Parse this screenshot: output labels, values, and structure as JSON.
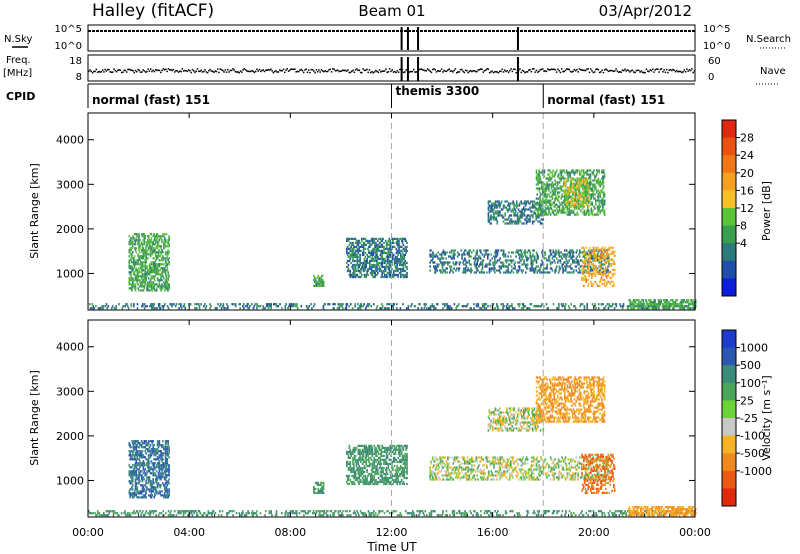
{
  "header": {
    "station": "Halley (fitACF)",
    "beam": "Beam 01",
    "date": "03/Apr/2012"
  },
  "strip_labels": {
    "nsky": "N.Sky",
    "nsky_top": "10^5",
    "nsky_bottom": "10^0",
    "nsearch": "N.Search",
    "nsearch_top": "10^5",
    "nsearch_bottom": "10^0",
    "freq": "Freq.",
    "freq_unit": "[MHz]",
    "freq_top": "18",
    "freq_bottom": "8",
    "nave": "Nave",
    "nave_top": "60",
    "nave_bottom": "0",
    "cpid": "CPID"
  },
  "cpid_segments": [
    {
      "label": "normal (fast) 151",
      "start_hour": 0
    },
    {
      "label": "themis 3300",
      "start_hour": 12
    },
    {
      "label": "normal (fast) 151",
      "start_hour": 18
    }
  ],
  "axes": {
    "xlabel": "Time UT",
    "ylabel": "Slant Range [km]",
    "xticks": [
      "00:00",
      "04:00",
      "08:00",
      "12:00",
      "16:00",
      "20:00",
      "00:00"
    ],
    "yticks": [
      "1000",
      "2000",
      "3000",
      "4000"
    ],
    "ylim_km": [
      180,
      4600
    ]
  },
  "power_scale": {
    "label": "Power [dB]",
    "ticks": [
      "4",
      "8",
      "12",
      "16",
      "20",
      "24",
      "28"
    ],
    "colors": [
      "#0a1edc",
      "#1f4fa8",
      "#2d7a7a",
      "#3a9d4f",
      "#5cc23a",
      "#f5c028",
      "#f5a020",
      "#f07818",
      "#e85212",
      "#e02810"
    ]
  },
  "velocity_scale": {
    "label": "Velocity [m s⁻¹]",
    "ticks": [
      "1000",
      "500",
      "100",
      "25",
      "-25",
      "-100",
      "-500",
      "-1000"
    ],
    "colors": [
      "#1e3ccc",
      "#2a58b0",
      "#3b8a7a",
      "#4aa55a",
      "#6ed23a",
      "#c8c8c8",
      "#f5b428",
      "#f08a1e",
      "#ea5a14",
      "#e02a10"
    ]
  },
  "chart_data": [
    {
      "type": "heatmap",
      "title": "Power",
      "xlabel": "Time UT",
      "ylabel": "Slant Range [km]",
      "xlim_hours": [
        0,
        24
      ],
      "ylim_km": [
        180,
        4600
      ],
      "colorbar_label": "Power [dB]",
      "clusters": [
        {
          "t0": 0.0,
          "t1": 24.0,
          "r0": 200,
          "r1": 300,
          "value": 8,
          "density": 0.25
        },
        {
          "t0": 1.6,
          "t1": 3.2,
          "r0": 600,
          "r1": 1900,
          "value": 12,
          "density": 0.45
        },
        {
          "t0": 8.9,
          "t1": 9.3,
          "r0": 700,
          "r1": 950,
          "value": 12,
          "density": 0.5
        },
        {
          "t0": 10.2,
          "t1": 12.6,
          "r0": 900,
          "r1": 1800,
          "value": 8,
          "density": 0.45
        },
        {
          "t0": 15.8,
          "t1": 18.0,
          "r0": 2100,
          "r1": 2600,
          "value": 8,
          "density": 0.4
        },
        {
          "t0": 17.7,
          "t1": 20.4,
          "r0": 2300,
          "r1": 3300,
          "value": 12,
          "density": 0.4
        },
        {
          "t0": 18.8,
          "t1": 19.8,
          "r0": 2500,
          "r1": 3100,
          "value": 16,
          "density": 0.35
        },
        {
          "t0": 13.5,
          "t1": 20.6,
          "r0": 1000,
          "r1": 1500,
          "value": 8,
          "density": 0.3
        },
        {
          "t0": 19.5,
          "t1": 20.8,
          "r0": 700,
          "r1": 1600,
          "value": 20,
          "density": 0.3
        },
        {
          "t0": 21.3,
          "t1": 24.0,
          "r0": 200,
          "r1": 400,
          "value": 12,
          "density": 0.5
        }
      ]
    },
    {
      "type": "heatmap",
      "title": "Velocity",
      "xlabel": "Time UT",
      "ylabel": "Slant Range [km]",
      "xlim_hours": [
        0,
        24
      ],
      "ylim_km": [
        180,
        4600
      ],
      "colorbar_label": "Velocity [m s⁻¹]",
      "clusters": [
        {
          "t0": 0.0,
          "t1": 24.0,
          "r0": 200,
          "r1": 300,
          "value": 100,
          "density": 0.25
        },
        {
          "t0": 1.6,
          "t1": 3.2,
          "r0": 600,
          "r1": 1900,
          "value": 500,
          "density": 0.45
        },
        {
          "t0": 8.9,
          "t1": 9.3,
          "r0": 700,
          "r1": 950,
          "value": 100,
          "density": 0.5
        },
        {
          "t0": 10.2,
          "t1": 12.6,
          "r0": 900,
          "r1": 1800,
          "value": 100,
          "density": 0.45
        },
        {
          "t0": 15.8,
          "t1": 18.0,
          "r0": 2100,
          "r1": 2600,
          "value": 0,
          "density": 0.4
        },
        {
          "t0": 17.7,
          "t1": 20.4,
          "r0": 2300,
          "r1": 3300,
          "value": -100,
          "density": 0.4
        },
        {
          "t0": 13.5,
          "t1": 20.6,
          "r0": 1000,
          "r1": 1500,
          "value": 0,
          "density": 0.3
        },
        {
          "t0": 19.5,
          "t1": 20.8,
          "r0": 700,
          "r1": 1600,
          "value": -500,
          "density": 0.3
        },
        {
          "t0": 21.3,
          "t1": 24.0,
          "r0": 200,
          "r1": 400,
          "value": -100,
          "density": 0.5
        }
      ]
    }
  ]
}
